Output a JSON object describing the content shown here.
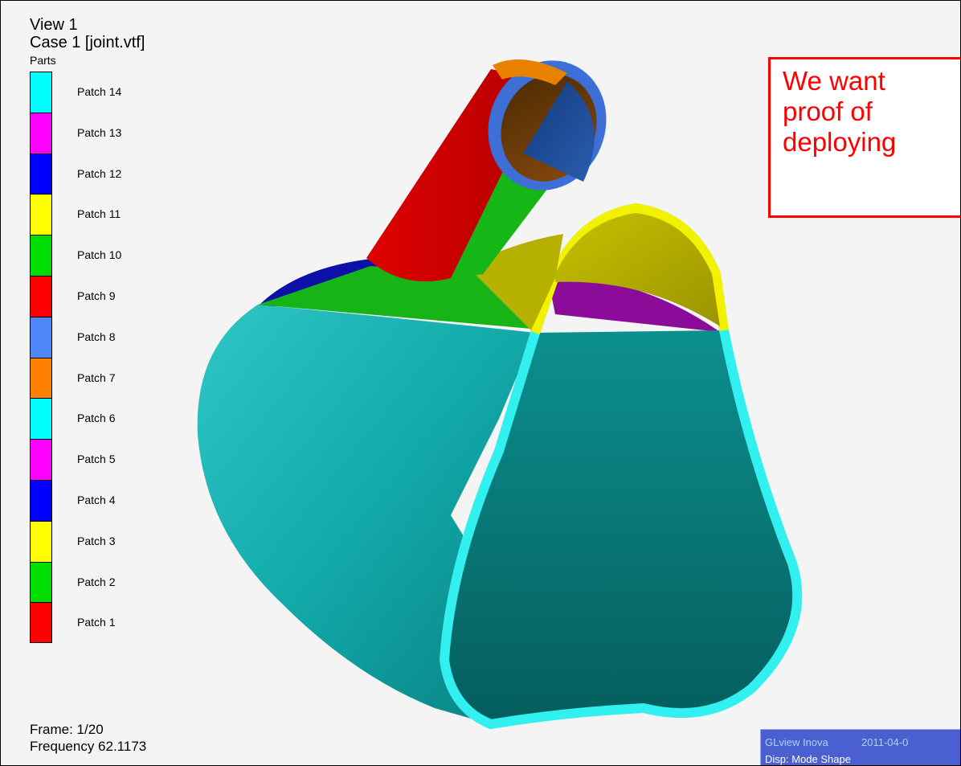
{
  "viewport": {
    "view_title": "View 1",
    "case_title": "Case 1  [joint.vtf]",
    "parts_label": "Parts",
    "legend": [
      {
        "label": "Patch 14",
        "color": "#00ffff"
      },
      {
        "label": "Patch 13",
        "color": "#ff00ff"
      },
      {
        "label": "Patch 12",
        "color": "#0000ff"
      },
      {
        "label": "Patch 11",
        "color": "#ffff00"
      },
      {
        "label": "Patch 10",
        "color": "#00dd00"
      },
      {
        "label": "Patch 9",
        "color": "#ff0000"
      },
      {
        "label": "Patch 8",
        "color": "#4f86f7"
      },
      {
        "label": "Patch 7",
        "color": "#ff8000"
      },
      {
        "label": "Patch 6",
        "color": "#00ffff"
      },
      {
        "label": "Patch 5",
        "color": "#ff00ff"
      },
      {
        "label": "Patch 4",
        "color": "#0000ff"
      },
      {
        "label": "Patch 3",
        "color": "#ffff00"
      },
      {
        "label": "Patch 2",
        "color": "#00dd00"
      },
      {
        "label": "Patch 1",
        "color": "#ff0000"
      }
    ],
    "frame_text": "Frame:  1/20",
    "frequency_text": "Frequency 62.1173"
  },
  "annotation": {
    "lines": [
      "We want",
      "proof of",
      "deploying"
    ],
    "color": "#ff0000"
  },
  "status": {
    "app": "GLview Inova",
    "date": "2011-04-0",
    "disp": "Disp: Mode Shape"
  },
  "model": {
    "description_icon": "tube-joint-3d-model"
  }
}
